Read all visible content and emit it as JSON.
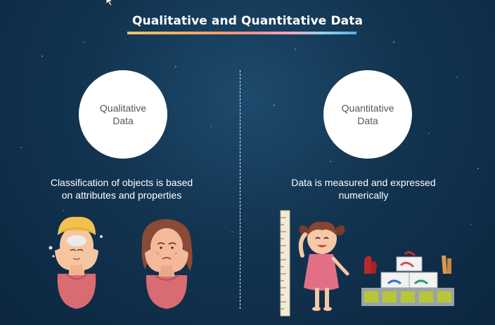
{
  "title": "Qualitative and Quantitative Data",
  "left": {
    "circle_lines": [
      "Qualitative",
      "Data"
    ],
    "desc_lines": [
      "Classification of objects is based",
      "on attributes and properties"
    ]
  },
  "right": {
    "circle_lines": [
      "Quantitative",
      "Data"
    ],
    "desc_lines": [
      "Data is measured and expressed",
      "numerically"
    ]
  },
  "colors": {
    "background": "#123450",
    "title_underline": [
      "#e9c46a",
      "#f4a261",
      "#f28c8c",
      "#9ad0ec",
      "#5aa9e6"
    ],
    "circle": "#ffffff",
    "text": "#ffffff"
  },
  "icons": [
    "cursor-icon",
    "woman-with-towel-illustration",
    "older-woman-illustration",
    "height-ruler-illustration",
    "girl-illustration",
    "shoe-rack-illustration"
  ]
}
